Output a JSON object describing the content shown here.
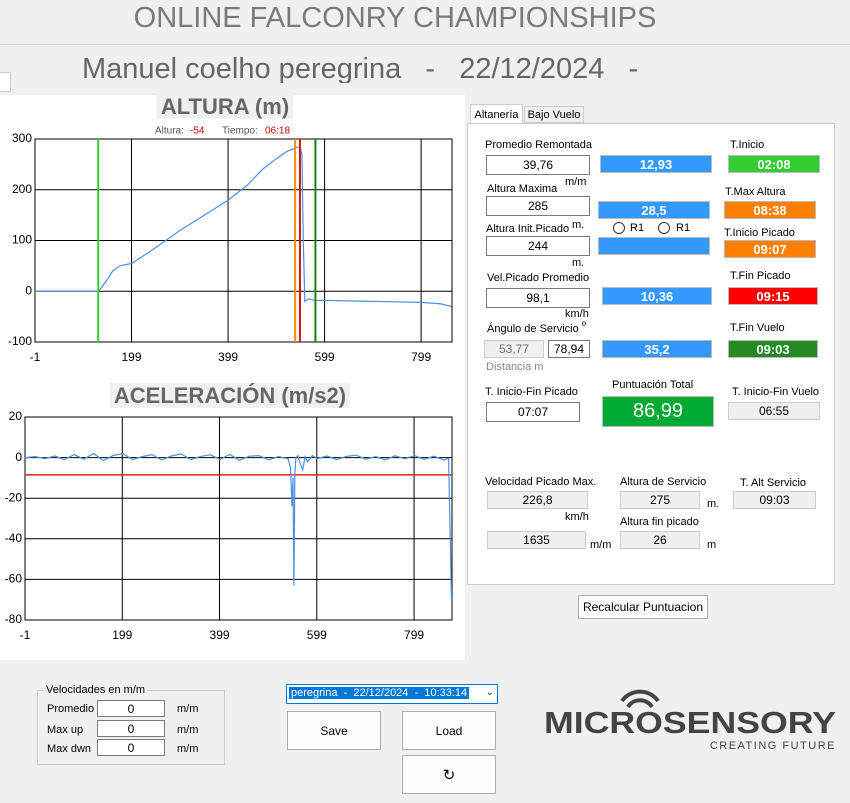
{
  "header": {
    "title": "ONLINE FALCONRY CHAMPIONSHIPS",
    "subtitle": "Manuel coelho peregrina   -   22/12/2024   -"
  },
  "chart_data": [
    {
      "type": "line",
      "title": "ALTURA (m)",
      "readout": {
        "altura_label": "Altura:",
        "altura": -54,
        "tiempo_label": "Tiempo:",
        "tiempo": "06:18"
      },
      "x": [
        -1,
        60,
        130,
        135,
        150,
        160,
        175,
        200,
        240,
        300,
        350,
        400,
        440,
        470,
        500,
        520,
        540,
        548,
        552,
        555,
        558,
        565,
        580,
        600,
        700,
        800,
        840,
        862
      ],
      "series": [
        {
          "color": "#4a90e2",
          "values": [
            0,
            0,
            0,
            5,
            25,
            40,
            50,
            55,
            80,
            120,
            150,
            180,
            210,
            240,
            262,
            275,
            283,
            285,
            270,
            100,
            -20,
            -15,
            -18,
            -18,
            -20,
            -22,
            -25,
            -30
          ]
        }
      ],
      "markers": [
        {
          "x": 130,
          "color": "#33cc33"
        },
        {
          "x": 538,
          "color": "#ff8c00"
        },
        {
          "x": 548,
          "color": "#dd1111"
        },
        {
          "x": 580,
          "color": "#1a7f1a"
        }
      ],
      "xlim": [
        -1,
        863
      ],
      "xticks": [
        -1,
        199,
        399,
        599,
        799
      ],
      "ylim": [
        -100,
        300
      ],
      "yticks": [
        300,
        200,
        100,
        0,
        -100
      ],
      "grid": true
    },
    {
      "type": "line",
      "title": "ACELERACIÓN (m/s2)",
      "x": [
        -1,
        20,
        40,
        60,
        80,
        100,
        120,
        140,
        160,
        180,
        200,
        220,
        240,
        260,
        280,
        300,
        320,
        340,
        360,
        380,
        400,
        420,
        440,
        460,
        480,
        500,
        520,
        540,
        545,
        548,
        550,
        552,
        554,
        556,
        560,
        565,
        570,
        575,
        580,
        590,
        600,
        620,
        640,
        660,
        680,
        700,
        720,
        740,
        760,
        780,
        800,
        820,
        840,
        860,
        870,
        876
      ],
      "series": [
        {
          "color": "#4a90e2",
          "values": [
            0,
            0.5,
            -0.5,
            0.8,
            -1,
            1.5,
            -0.8,
            2,
            -1.5,
            1,
            2,
            -1,
            0.5,
            1.5,
            -1.2,
            0.8,
            1.8,
            -1,
            0.6,
            1.4,
            -0.9,
            1.6,
            -1.3,
            0.7,
            1,
            -1.1,
            0.5,
            -0.6,
            -5,
            -24,
            -10,
            -63,
            -8,
            0,
            1,
            -3,
            -6,
            0.5,
            -2,
            1,
            -0.5,
            0.8,
            -1,
            0.6,
            1.2,
            -0.8,
            0.5,
            -1.1,
            0.9,
            -0.6,
            1,
            -0.9,
            0.7,
            -1.2,
            -0.5,
            -70
          ]
        }
      ],
      "reference_lines": [
        {
          "y": -8.5,
          "color": "#e02020"
        }
      ],
      "xlim": [
        -1,
        877
      ],
      "xticks": [
        -1,
        199,
        399,
        599,
        799
      ],
      "ylim": [
        -80,
        20
      ],
      "yticks": [
        20,
        0,
        -20,
        -40,
        -60,
        -80
      ],
      "grid": true
    }
  ],
  "panel": {
    "tabs": [
      "Altanería",
      "Bajo Vuelo"
    ],
    "promedio_remontada": {
      "label": "Promedio Remontada",
      "value": "39,76",
      "unit": "m/m",
      "result": "12,93",
      "time_label": "T.Inicio",
      "time": "02:08"
    },
    "altura_maxima": {
      "label": "Altura Maxima",
      "value": "285",
      "unit": "m.",
      "result": "28,5",
      "time_label": "T.Max Altura",
      "time": "08:38"
    },
    "altura_init_picado": {
      "label": "Altura Init.Picado",
      "value": "244",
      "unit": "m.",
      "radios": [
        "R1",
        "R1"
      ],
      "time_label": "T.Inicio Picado",
      "time": "09:07"
    },
    "vel_picado_promedio": {
      "label": "Vel.Picado Promedio",
      "value": "98,1",
      "unit": "km/h",
      "result": "10,36",
      "time_label": "T.Fin Picado",
      "time": "09:15"
    },
    "angulo_servicio": {
      "label": "Ángulo de Servicio",
      "unit": "º",
      "value_1": "53,77",
      "value_2": "78,94",
      "note": "Distancia m",
      "result": "35,2",
      "time_label": "T.Fin Vuelo",
      "time": "09:03"
    },
    "t_inicio_fin_picado": {
      "label": "T. Inicio-Fin Picado",
      "value": "07:07"
    },
    "puntuacion_total": {
      "label": "Puntuación Total",
      "value": "86,99"
    },
    "t_inicio_fin_vuelo": {
      "label": "T. Inicio-Fin Vuelo",
      "value": "06:55"
    },
    "velocidad_picado_max": {
      "label": "Velocidad Picado Max.",
      "value": "226,8",
      "unit": "km/h",
      "value_2": "1635",
      "unit_2": "m/m"
    },
    "altura_servicio": {
      "label": "Altura de Servicio",
      "value": "275",
      "unit": "m."
    },
    "t_alt_servicio": {
      "label": "T. Alt Servicio",
      "value": "09:03"
    },
    "altura_fin_picado": {
      "label": "Altura fin picado",
      "value": "26",
      "unit": "m"
    },
    "button": "Recalcular Puntuacion"
  },
  "bottom": {
    "group_title": "Velocidades en m/m",
    "rows": [
      {
        "label": "Promedio",
        "value": "0",
        "unit": "m/m"
      },
      {
        "label": "Max up",
        "value": "0",
        "unit": "m/m"
      },
      {
        "label": "Max dwn",
        "value": "0",
        "unit": "m/m"
      }
    ],
    "dropdown": "peregrina  -  22/12/2024  -  10:33:14",
    "save": "Save",
    "load": "Load",
    "refresh": "↻"
  },
  "logo": {
    "name": "MICROSENSORY",
    "tagline": "CREATING FUTURE"
  }
}
